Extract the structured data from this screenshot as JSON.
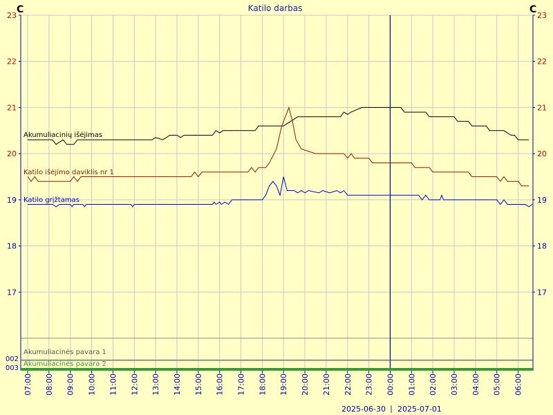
{
  "chart_data": {
    "type": "line",
    "title": "Katilo darbas",
    "unit_left": "C",
    "unit_right": "C",
    "ylim": [
      16,
      23
    ],
    "yticks": [
      "17",
      "18",
      "19",
      "20",
      "21",
      "22",
      "23"
    ],
    "xticks": [
      "07:00",
      "08:00",
      "09:00",
      "10:00",
      "11:00",
      "12:00",
      "13:00",
      "14:00",
      "15:00",
      "16:00",
      "17:00",
      "18:00",
      "19:00",
      "20:00",
      "21:00",
      "22:00",
      "23:00",
      "00:00",
      "01:00",
      "02:00",
      "03:00",
      "04:00",
      "05:00",
      "06:00"
    ],
    "date_left": "2025-06-30",
    "date_right": "2025-07-01",
    "date_separator": "|",
    "divider_time": "00:00",
    "grid": true,
    "colors": {
      "background": "#ffffc6",
      "grid": "#c8c8c8",
      "axis": "#0000aa",
      "left_tick_text": "#cc0000",
      "right_tick_text": "#cc0000"
    },
    "series": [
      {
        "name": "Akumuliacinių išėjimas",
        "color": "#000000",
        "points": [
          [
            "07:00",
            20.3
          ],
          [
            "08:10",
            20.3
          ],
          [
            "08:20",
            20.2
          ],
          [
            "08:40",
            20.3
          ],
          [
            "08:50",
            20.2
          ],
          [
            "09:10",
            20.2
          ],
          [
            "09:20",
            20.3
          ],
          [
            "12:50",
            20.3
          ],
          [
            "13:00",
            20.35
          ],
          [
            "13:20",
            20.3
          ],
          [
            "13:40",
            20.4
          ],
          [
            "14:00",
            20.4
          ],
          [
            "14:10",
            20.35
          ],
          [
            "14:20",
            20.4
          ],
          [
            "15:40",
            20.4
          ],
          [
            "15:50",
            20.5
          ],
          [
            "16:00",
            20.45
          ],
          [
            "16:10",
            20.5
          ],
          [
            "17:40",
            20.5
          ],
          [
            "17:50",
            20.6
          ],
          [
            "18:00",
            20.6
          ],
          [
            "19:00",
            20.6
          ],
          [
            "19:20",
            20.7
          ],
          [
            "19:40",
            20.8
          ],
          [
            "21:40",
            20.8
          ],
          [
            "21:50",
            20.9
          ],
          [
            "22:00",
            20.85
          ],
          [
            "22:10",
            20.9
          ],
          [
            "22:40",
            21.0
          ],
          [
            "00:30",
            21.0
          ],
          [
            "00:40",
            20.9
          ],
          [
            "01:40",
            20.9
          ],
          [
            "01:50",
            20.8
          ],
          [
            "03:00",
            20.8
          ],
          [
            "03:10",
            20.7
          ],
          [
            "03:40",
            20.7
          ],
          [
            "03:50",
            20.6
          ],
          [
            "04:30",
            20.6
          ],
          [
            "04:40",
            20.5
          ],
          [
            "05:20",
            20.5
          ],
          [
            "05:40",
            20.4
          ],
          [
            "05:50",
            20.4
          ],
          [
            "06:00",
            20.3
          ],
          [
            "06:30",
            20.3
          ]
        ]
      },
      {
        "name": "Katilo išėjimo daviklis nr 1",
        "color": "#8b1a00",
        "points": [
          [
            "07:00",
            19.5
          ],
          [
            "07:10",
            19.4
          ],
          [
            "07:20",
            19.5
          ],
          [
            "07:30",
            19.4
          ],
          [
            "09:00",
            19.4
          ],
          [
            "09:10",
            19.5
          ],
          [
            "09:20",
            19.4
          ],
          [
            "09:30",
            19.5
          ],
          [
            "14:40",
            19.5
          ],
          [
            "14:50",
            19.6
          ],
          [
            "15:00",
            19.5
          ],
          [
            "15:10",
            19.6
          ],
          [
            "17:20",
            19.6
          ],
          [
            "17:30",
            19.7
          ],
          [
            "17:40",
            19.6
          ],
          [
            "17:50",
            19.7
          ],
          [
            "18:10",
            19.7
          ],
          [
            "18:20",
            19.8
          ],
          [
            "18:40",
            20.1
          ],
          [
            "18:55",
            20.6
          ],
          [
            "19:05",
            20.8
          ],
          [
            "19:15",
            21.0
          ],
          [
            "19:25",
            20.7
          ],
          [
            "19:35",
            20.3
          ],
          [
            "19:50",
            20.1
          ],
          [
            "20:30",
            20.0
          ],
          [
            "21:50",
            20.0
          ],
          [
            "22:00",
            19.9
          ],
          [
            "22:10",
            20.0
          ],
          [
            "22:20",
            19.9
          ],
          [
            "23:00",
            19.9
          ],
          [
            "23:10",
            19.8
          ],
          [
            "01:00",
            19.8
          ],
          [
            "01:10",
            19.7
          ],
          [
            "01:50",
            19.7
          ],
          [
            "02:00",
            19.6
          ],
          [
            "03:40",
            19.6
          ],
          [
            "03:50",
            19.5
          ],
          [
            "05:00",
            19.5
          ],
          [
            "05:10",
            19.4
          ],
          [
            "05:20",
            19.5
          ],
          [
            "05:30",
            19.4
          ],
          [
            "06:00",
            19.4
          ],
          [
            "06:10",
            19.3
          ],
          [
            "06:30",
            19.3
          ]
        ]
      },
      {
        "name": "Katilo grįžtamas",
        "color": "#0000cc",
        "points": [
          [
            "07:00",
            18.9
          ],
          [
            "08:10",
            18.9
          ],
          [
            "08:20",
            18.85
          ],
          [
            "08:30",
            18.9
          ],
          [
            "09:00",
            18.9
          ],
          [
            "09:05",
            18.85
          ],
          [
            "09:10",
            18.9
          ],
          [
            "09:35",
            18.9
          ],
          [
            "09:40",
            18.85
          ],
          [
            "09:45",
            18.9
          ],
          [
            "11:50",
            18.9
          ],
          [
            "11:55",
            18.85
          ],
          [
            "12:00",
            18.9
          ],
          [
            "15:40",
            18.9
          ],
          [
            "15:45",
            18.95
          ],
          [
            "15:50",
            18.9
          ],
          [
            "16:00",
            18.95
          ],
          [
            "16:05",
            18.9
          ],
          [
            "16:15",
            18.95
          ],
          [
            "16:25",
            18.9
          ],
          [
            "16:35",
            19.0
          ],
          [
            "18:00",
            19.0
          ],
          [
            "18:10",
            19.1
          ],
          [
            "18:20",
            19.3
          ],
          [
            "18:30",
            19.4
          ],
          [
            "18:40",
            19.3
          ],
          [
            "18:50",
            19.1
          ],
          [
            "19:00",
            19.5
          ],
          [
            "19:10",
            19.2
          ],
          [
            "19:30",
            19.2
          ],
          [
            "19:40",
            19.15
          ],
          [
            "19:50",
            19.2
          ],
          [
            "20:00",
            19.15
          ],
          [
            "20:10",
            19.2
          ],
          [
            "20:40",
            19.15
          ],
          [
            "20:50",
            19.2
          ],
          [
            "21:10",
            19.15
          ],
          [
            "21:30",
            19.2
          ],
          [
            "21:40",
            19.15
          ],
          [
            "21:50",
            19.2
          ],
          [
            "22:00",
            19.1
          ],
          [
            "01:20",
            19.1
          ],
          [
            "01:30",
            19.0
          ],
          [
            "01:40",
            19.1
          ],
          [
            "01:50",
            19.0
          ],
          [
            "02:20",
            19.0
          ],
          [
            "02:25",
            19.1
          ],
          [
            "02:30",
            19.0
          ],
          [
            "05:00",
            19.0
          ],
          [
            "05:10",
            18.9
          ],
          [
            "05:20",
            19.0
          ],
          [
            "05:30",
            18.9
          ],
          [
            "06:20",
            18.9
          ],
          [
            "06:30",
            18.85
          ],
          [
            "06:40",
            18.9
          ]
        ]
      }
    ],
    "digital_series": [
      {
        "name": "Akumuliacinės pavara 1",
        "code": "002",
        "color": "#555555",
        "state": 0
      },
      {
        "name": "Akumuliacinės pavara 2",
        "code": "003",
        "color": "#3a9a3a",
        "state": 1
      }
    ]
  }
}
